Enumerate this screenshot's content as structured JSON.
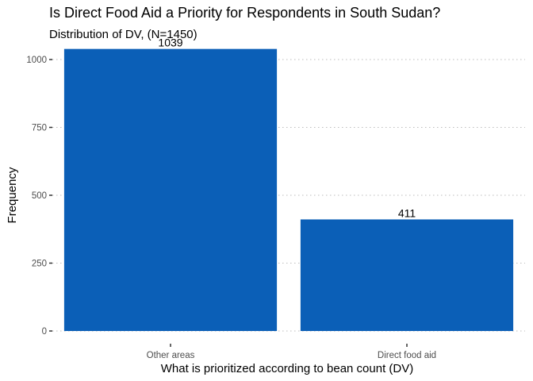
{
  "chart_data": {
    "type": "bar",
    "title": "Is Direct Food Aid a Priority for Respondents in South Sudan?",
    "subtitle": "Distribution of DV, (N=1450)",
    "xlabel": "What is prioritized according to bean count (DV)",
    "ylabel": "Frequency",
    "categories": [
      "Other areas",
      "Direct food aid"
    ],
    "values": [
      1039,
      411
    ],
    "data_labels": [
      "1039",
      "411"
    ],
    "yticks": [
      0,
      250,
      500,
      750,
      1000
    ],
    "ytick_labels": [
      "0",
      "250",
      "500",
      "750",
      "1000"
    ],
    "ylim": [
      0,
      1090
    ],
    "bar_color": "#0b5fb7",
    "grid": "horizontal dotted",
    "legend": "none"
  }
}
